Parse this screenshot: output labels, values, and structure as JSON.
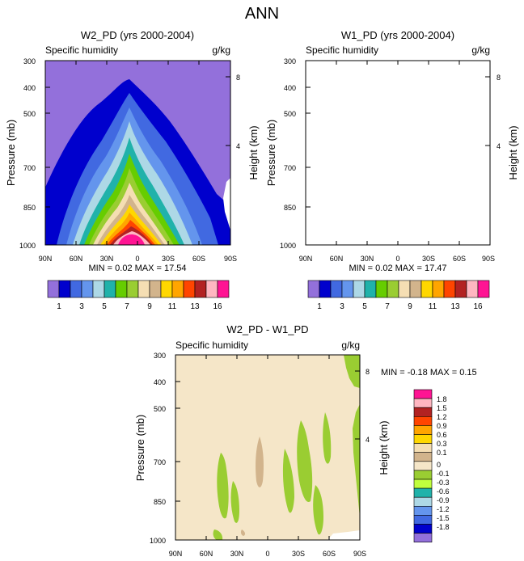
{
  "figure_title": "ANN",
  "colors": {
    "top_levels": [
      "#9370DB",
      "#0000CD",
      "#4169E1",
      "#6495ED",
      "#ADD8E6",
      "#20B2AA",
      "#66CD00",
      "#9ACD32",
      "#F5DEB3",
      "#D2B48C",
      "#FFD700",
      "#FFA500",
      "#FF4500",
      "#B22222",
      "#FFB6C1",
      "#FF1493"
    ],
    "diff_levels": [
      "#FF1493",
      "#FFB6C1",
      "#B22222",
      "#FF4500",
      "#FFA500",
      "#FFD700",
      "#F5DEB3",
      "#D2B48C",
      "#F5E6C8",
      "#9ACD32",
      "#C1FF3E",
      "#20B2AA",
      "#ADD8E6",
      "#6495ED",
      "#4169E1",
      "#0000CD",
      "#9370DB"
    ]
  },
  "chart_data": [
    {
      "type": "contour",
      "id": "w2",
      "title": "W2_PD (yrs 2000-2004)",
      "left_label": "Specific humidity",
      "right_label": "g/kg",
      "ylabel": "Pressure (mb)",
      "y2label": "Height (km)",
      "x_ticks": [
        "90N",
        "60N",
        "30N",
        "0",
        "30S",
        "60S",
        "90S"
      ],
      "y_ticks": [
        "300",
        "400",
        "500",
        "700",
        "850",
        "1000"
      ],
      "y2_ticks": [
        "8",
        "4"
      ],
      "stats": "MIN =  0.02  MAX = 17.54",
      "colorbar_labels": [
        "1",
        "3",
        "5",
        "7",
        "9",
        "11",
        "13",
        "16"
      ],
      "min": 0.02,
      "max": 17.54
    },
    {
      "type": "contour",
      "id": "w1",
      "title": "W1_PD (yrs 2000-2004)",
      "left_label": "Specific humidity",
      "right_label": "g/kg",
      "ylabel": "Pressure (mb)",
      "y2label": "Height (km)",
      "x_ticks": [
        "90N",
        "60N",
        "30N",
        "0",
        "30S",
        "60S",
        "90S"
      ],
      "y_ticks": [
        "300",
        "400",
        "500",
        "700",
        "850",
        "1000"
      ],
      "y2_ticks": [
        "8",
        "4"
      ],
      "stats": "MIN =  0.02  MAX = 17.47",
      "colorbar_labels": [
        "1",
        "3",
        "5",
        "7",
        "9",
        "11",
        "13",
        "16"
      ],
      "min": 0.02,
      "max": 17.47
    },
    {
      "type": "contour",
      "id": "diff",
      "title": "W2_PD - W1_PD",
      "left_label": "Specific humidity",
      "right_label": "g/kg",
      "ylabel": "Pressure (mb)",
      "y2label": "Height (km)",
      "x_ticks": [
        "90N",
        "60N",
        "30N",
        "0",
        "30S",
        "60S",
        "90S"
      ],
      "y_ticks": [
        "300",
        "400",
        "500",
        "700",
        "850",
        "1000"
      ],
      "y2_ticks": [
        "8",
        "4"
      ],
      "stats": "MIN = -0.18  MAX =  0.15",
      "colorbar_labels": [
        "1.8",
        "1.5",
        "1.2",
        "0.9",
        "0.6",
        "0.3",
        "0.1",
        "0",
        "-0.1",
        "-0.3",
        "-0.6",
        "-0.9",
        "-1.2",
        "-1.5",
        "-1.8"
      ],
      "min": -0.18,
      "max": 0.15
    }
  ]
}
